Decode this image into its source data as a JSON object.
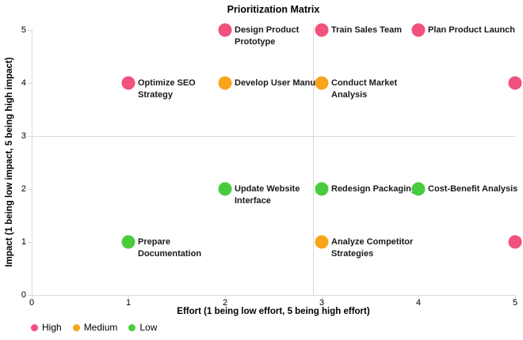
{
  "chart_data": {
    "type": "scatter",
    "title": "Prioritization Matrix",
    "xlabel": "Effort (1 being low effort, 5 being high effort)",
    "ylabel": "Impact (1 being low impact, 5 being high impact)",
    "xlim": [
      0,
      5
    ],
    "ylim": [
      0,
      5
    ],
    "x_ticks": [
      0,
      1,
      2,
      3,
      4,
      5
    ],
    "y_ticks": [
      0,
      1,
      2,
      3,
      4,
      5
    ],
    "grid": false,
    "quadrant_lines": {
      "x": 2.91,
      "y": 3
    },
    "legend_position": "bottom-left",
    "axis_line_color": "#d9d9d9",
    "categories": [
      {
        "name": "High",
        "color": "#f1517d"
      },
      {
        "name": "Medium",
        "color": "#f8a51b"
      },
      {
        "name": "Low",
        "color": "#49cb3e"
      }
    ],
    "points": [
      {
        "label": "Design Product Prototype",
        "lines": [
          "Design Product",
          "Prototype"
        ],
        "x": 2,
        "y": 5,
        "category": "High"
      },
      {
        "label": "Train Sales Team",
        "lines": [
          "Train Sales Team"
        ],
        "x": 3,
        "y": 5,
        "category": "High"
      },
      {
        "label": "Plan Product Launch",
        "lines": [
          "Plan Product Launch"
        ],
        "x": 4,
        "y": 5,
        "category": "High"
      },
      {
        "label": "Optimize SEO Strategy",
        "lines": [
          "Optimize SEO",
          "Strategy"
        ],
        "x": 1,
        "y": 4,
        "category": "High"
      },
      {
        "label": "Develop User Manual",
        "lines": [
          "Develop User Manual"
        ],
        "x": 2,
        "y": 4,
        "category": "Medium"
      },
      {
        "label": "Conduct Market Analysis",
        "lines": [
          "Conduct Market",
          "Analysis"
        ],
        "x": 3,
        "y": 4,
        "category": "Medium"
      },
      {
        "label": "",
        "lines": [],
        "x": 5,
        "y": 4,
        "category": "High"
      },
      {
        "label": "Update Website Interface",
        "lines": [
          "Update Website",
          "Interface"
        ],
        "x": 2,
        "y": 2,
        "category": "Low"
      },
      {
        "label": "Redesign Packaging",
        "lines": [
          "Redesign Packaging"
        ],
        "x": 3,
        "y": 2,
        "category": "Low"
      },
      {
        "label": "Cost-Benefit Analysis",
        "lines": [
          "Cost-Benefit Analysis"
        ],
        "x": 4,
        "y": 2,
        "category": "Low"
      },
      {
        "label": "Prepare Documentation",
        "lines": [
          "Prepare",
          "Documentation"
        ],
        "x": 1,
        "y": 1,
        "category": "Low"
      },
      {
        "label": "Analyze Competitor Strategies",
        "lines": [
          "Analyze Competitor",
          "Strategies"
        ],
        "x": 3,
        "y": 1,
        "category": "Medium"
      },
      {
        "label": "",
        "lines": [],
        "x": 5,
        "y": 1,
        "category": "High"
      }
    ]
  }
}
